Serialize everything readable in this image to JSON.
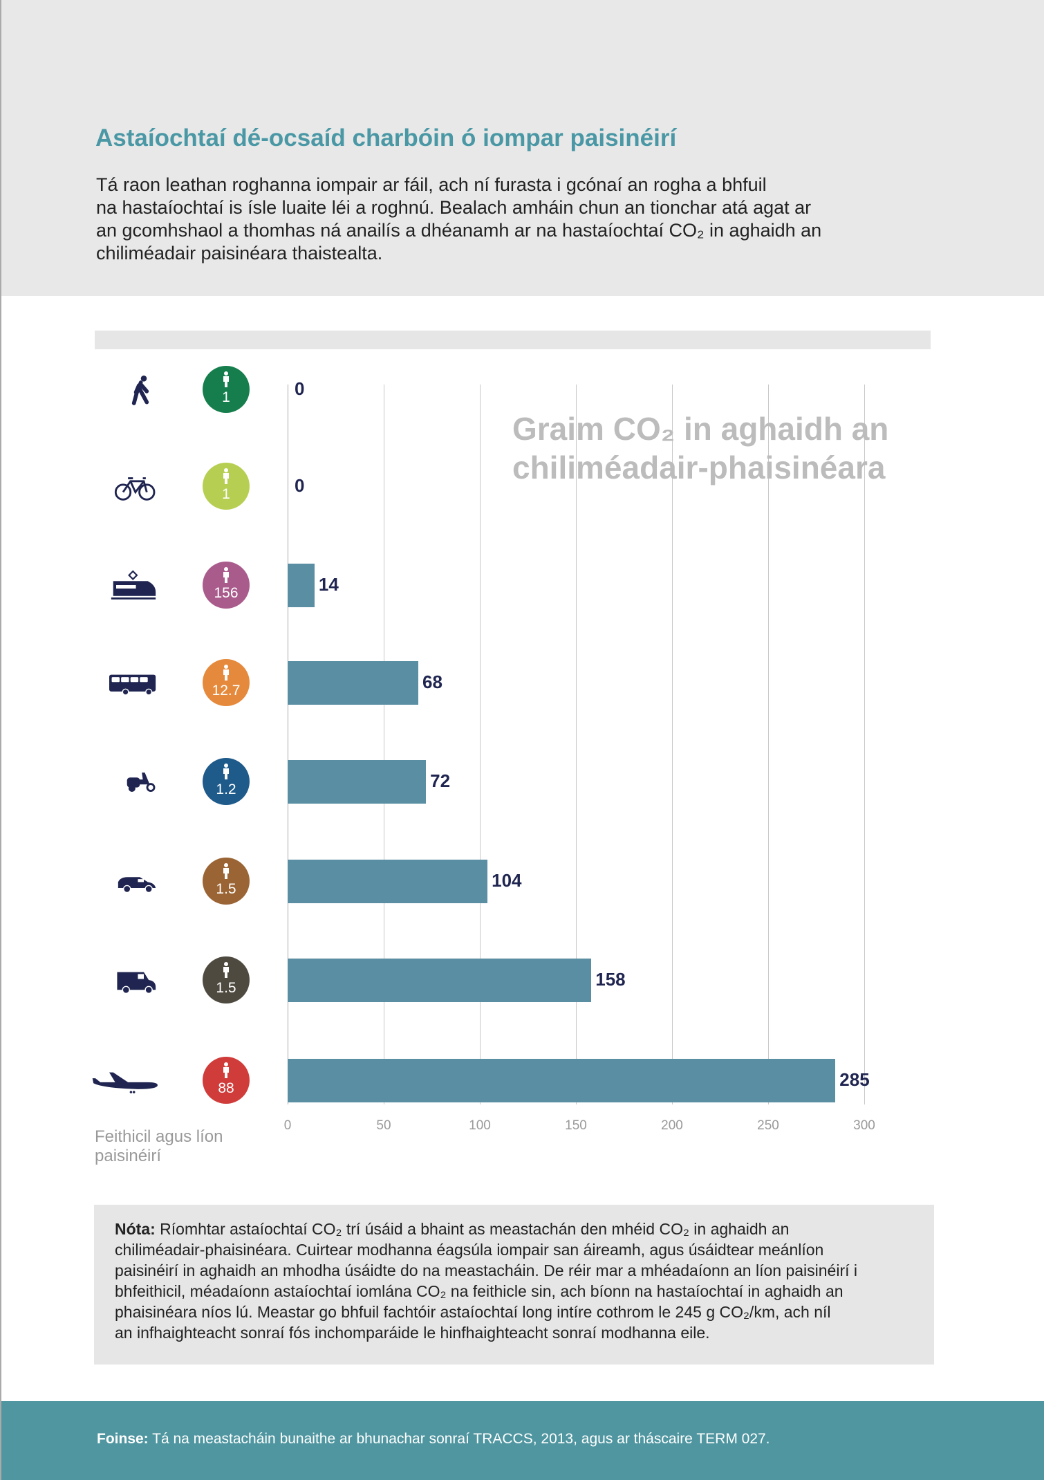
{
  "title": "Astaíochtaí dé-ocsaíd charbóin ó iompar paisinéirí",
  "intro": [
    "Tá raon leathan roghanna iompair ar fáil, ach ní furasta i gcónaí an rogha a bhfuil",
    "na hastaíochtaí is ísle luaite léi a roghnú. Bealach amháin chun an tionchar atá agat ar",
    "an gcomhshaol a thomhas ná anailís a dhéanamh ar na hastaíochtaí CO₂ in aghaidh an",
    "chiliméadair paisinéara thaistealta."
  ],
  "chart_data": {
    "type": "bar",
    "orientation": "horizontal",
    "title_lines": [
      "Graim CO₂ in aghaidh an",
      "chiliméadair-phaisinéara"
    ],
    "ylabel": "Feithicil agus líon paisinéirí",
    "xlim": [
      0,
      300
    ],
    "xticks": [
      "0",
      "50",
      "100",
      "150",
      "200",
      "250",
      "300"
    ],
    "bar_color": "#5a8fa3",
    "categories": [
      {
        "icon": "walking-person-icon",
        "passengers": "1",
        "color": "#167e4c",
        "value": 0
      },
      {
        "icon": "bicycle-icon",
        "passengers": "1",
        "color": "#b6cf52",
        "value": 0
      },
      {
        "icon": "train-icon",
        "passengers": "156",
        "color": "#a95b8c",
        "value": 14
      },
      {
        "icon": "bus-icon",
        "passengers": "12.7",
        "color": "#e58a3c",
        "value": 68
      },
      {
        "icon": "moped-icon",
        "passengers": "1.2",
        "color": "#1e5a8a",
        "value": 72
      },
      {
        "icon": "car-icon",
        "passengers": "1.5",
        "color": "#9a6434",
        "value": 104
      },
      {
        "icon": "van-icon",
        "passengers": "1.5",
        "color": "#4f4a3f",
        "value": 158
      },
      {
        "icon": "airplane-icon",
        "passengers": "88",
        "color": "#cf3c3a",
        "value": 285
      }
    ]
  },
  "note": {
    "label": "Nóta:",
    "lines": [
      " Ríomhtar astaíochtaí CO₂ trí úsáid a bhaint as meastachán den mhéid CO₂ in aghaidh an",
      "chiliméadair-phaisinéara. Cuirtear modhanna éagsúla iompair san áireamh, agus úsáidtear meánlíon",
      "paisinéirí in aghaidh an mhodha úsáidte do na meastacháin. De réir mar a mhéadaíonn an líon paisinéirí i",
      "bhfeithicil, méadaíonn astaíochtaí iomlána CO₂ na feithicle sin, ach bíonn na hastaíochtaí in aghaidh an",
      "phaisinéara níos lú. Meastar go bhfuil fachtóir astaíochtaí long intíre cothrom le 245 g CO₂/km, ach níl",
      "an infhaighteacht sonraí fós inchomparáide le hinfhaighteacht sonraí modhanna eile."
    ]
  },
  "footer": {
    "label": "Foinse:",
    "text": " Tá na meastacháin bunaithe ar bhunachar sonraí TRACCS, 2013, agus ar tháscaire TERM 027."
  }
}
